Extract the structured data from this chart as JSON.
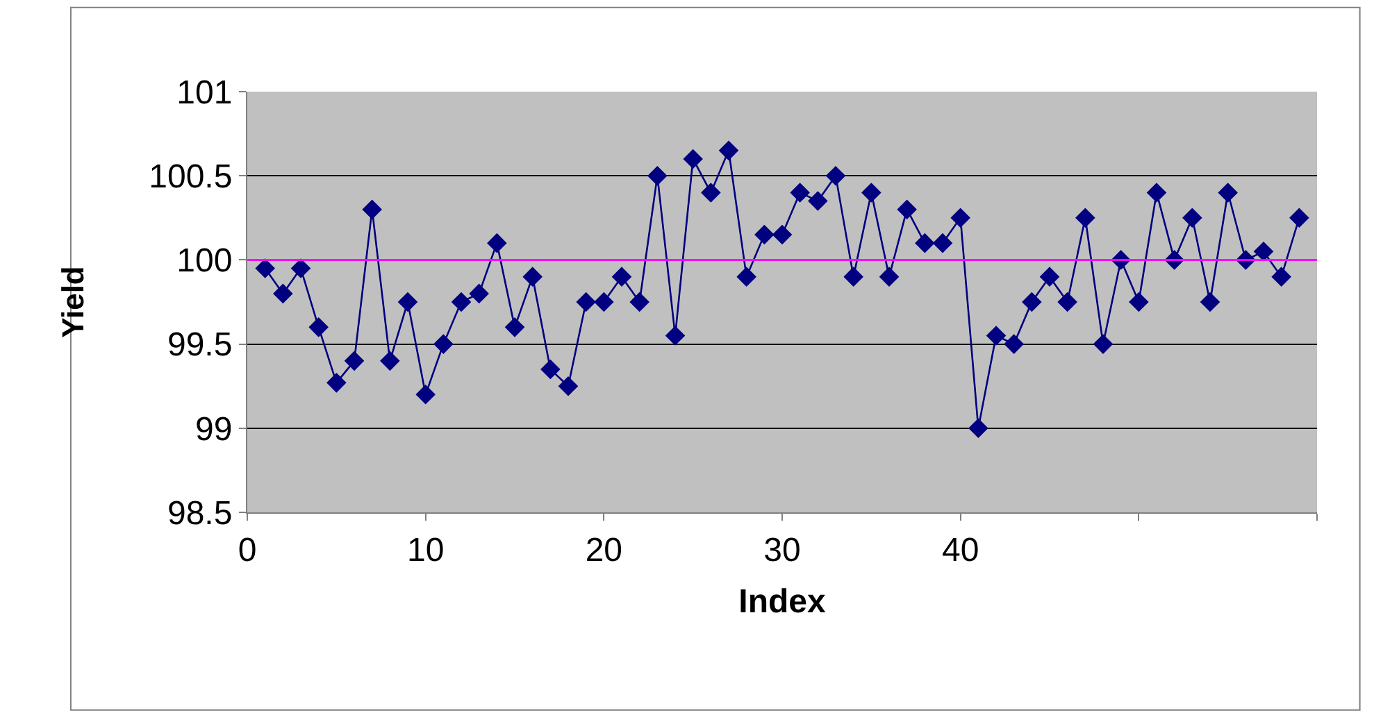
{
  "chart_data": {
    "type": "line",
    "xlabel": "Index",
    "ylabel": "Yield",
    "x": [
      1,
      2,
      3,
      4,
      5,
      6,
      7,
      8,
      9,
      10,
      11,
      12,
      13,
      14,
      15,
      16,
      17,
      18,
      19,
      20,
      21,
      22,
      23,
      24,
      25,
      26,
      27,
      28,
      29,
      30,
      31,
      32,
      33,
      34,
      35,
      36,
      37,
      38,
      39,
      40,
      41,
      42,
      43,
      44,
      45,
      46,
      47,
      48,
      49,
      50,
      51,
      52,
      53,
      54,
      55,
      56,
      57,
      58,
      59
    ],
    "series": [
      {
        "color": "#000080",
        "values": [
          99.95,
          99.8,
          99.95,
          99.6,
          99.27,
          99.4,
          100.3,
          99.4,
          99.75,
          99.2,
          99.5,
          99.75,
          99.8,
          100.1,
          99.6,
          99.9,
          99.35,
          99.25,
          99.75,
          99.75,
          99.9,
          99.75,
          100.5,
          99.55,
          100.6,
          100.4,
          100.65,
          99.9,
          100.15,
          100.15,
          100.4,
          100.35,
          100.5,
          99.9,
          100.4,
          99.9,
          100.3,
          100.1,
          100.1,
          100.25,
          99.0,
          99.55,
          99.5,
          99.75,
          99.9,
          99.75,
          100.25,
          99.5,
          100.0,
          99.75,
          100.4,
          100.0,
          100.25,
          99.75,
          100.4,
          100.0,
          100.05,
          99.9,
          100.25
        ]
      }
    ],
    "xlim": [
      0,
      60
    ],
    "xticks": [
      0,
      10,
      20,
      30,
      40,
      {
        "value": 50,
        "label": null
      },
      {
        "value": 60,
        "label": null
      }
    ],
    "ylim": [
      98.5,
      101
    ],
    "yticks": [
      98.5,
      99,
      99.5,
      100,
      100.5,
      101
    ],
    "ref_lines": [
      {
        "axis": "y",
        "value": 100,
        "color": "#ff00ff"
      }
    ],
    "grid": "y",
    "marker": "diamond",
    "line_style": "solid"
  }
}
